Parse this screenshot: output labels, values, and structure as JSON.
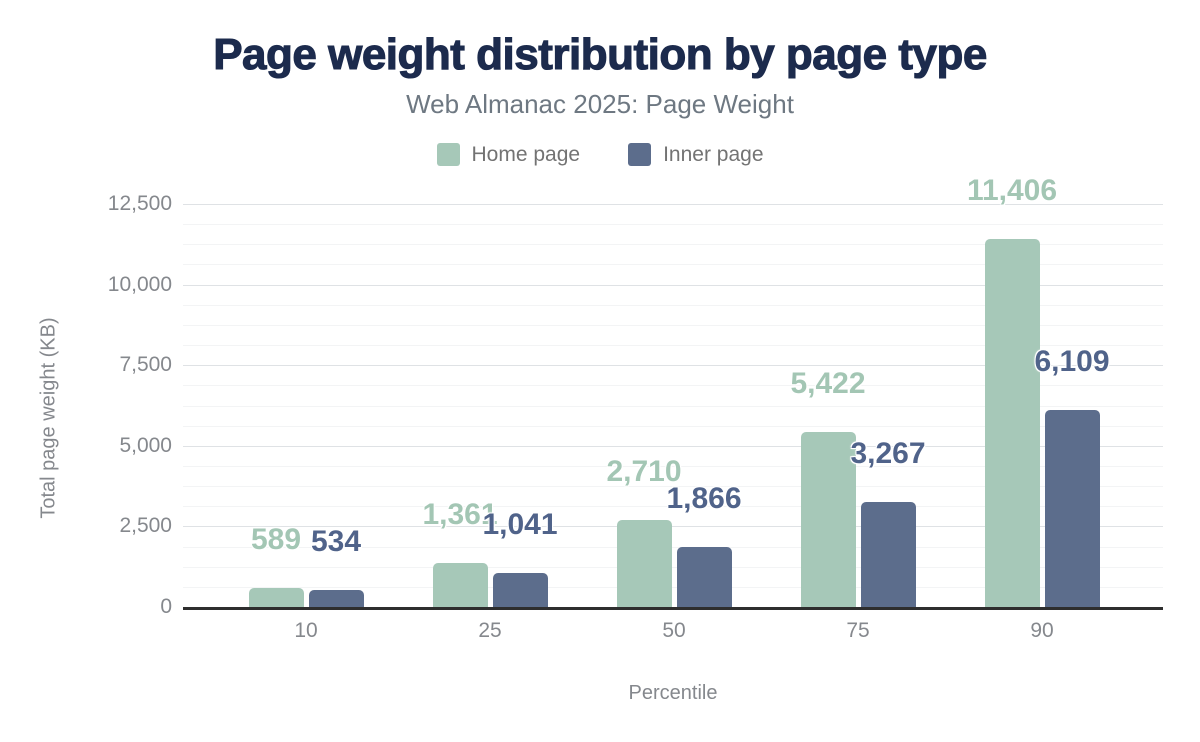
{
  "header": {
    "title": "Page weight distribution by page type",
    "subtitle": "Web Almanac 2025: Page Weight"
  },
  "legend": [
    {
      "label": "Home page",
      "color": "#a6c8b8"
    },
    {
      "label": "Inner page",
      "color": "#5c6d8c"
    }
  ],
  "axes": {
    "y_title": "Total page weight (KB)",
    "x_title": "Percentile"
  },
  "colors": {
    "title": "#1c2b4d",
    "subtitle": "#6e7882",
    "axis_text": "#85888d",
    "axis_line": "#2e2e2e",
    "grid_major": "#dfe2e5",
    "grid_minor": "#f3f4f5",
    "home_bar": "#a6c8b8",
    "inner_bar": "#5c6d8c",
    "home_label": "#a3c6b4",
    "inner_label": "#50638a"
  },
  "chart_data": {
    "type": "bar",
    "title": "Page weight distribution by page type",
    "subtitle": "Web Almanac 2025: Page Weight",
    "xlabel": "Percentile",
    "ylabel": "Total page weight (KB)",
    "categories": [
      "10",
      "25",
      "50",
      "75",
      "90"
    ],
    "series": [
      {
        "name": "Home page",
        "color": "#a6c8b8",
        "label_color": "#a3c6b4",
        "values": [
          589,
          1361,
          2710,
          5422,
          11406
        ],
        "value_labels": [
          "589",
          "1,361",
          "2,710",
          "5,422",
          "11,406"
        ]
      },
      {
        "name": "Inner page",
        "color": "#5c6d8c",
        "label_color": "#50638a",
        "values": [
          534,
          1041,
          1866,
          3267,
          6109
        ],
        "value_labels": [
          "534",
          "1,041",
          "1,866",
          "3,267",
          "6,109"
        ]
      }
    ],
    "ylim": [
      0,
      12500
    ],
    "yticks": [
      0,
      2500,
      5000,
      7500,
      10000,
      12500
    ],
    "ytick_labels": [
      "0",
      "2,500",
      "5,000",
      "7,500",
      "10,000",
      "12,500"
    ],
    "minor_grid_step": 625,
    "grid": true,
    "legend_position": "top",
    "bar_labels": "above"
  }
}
